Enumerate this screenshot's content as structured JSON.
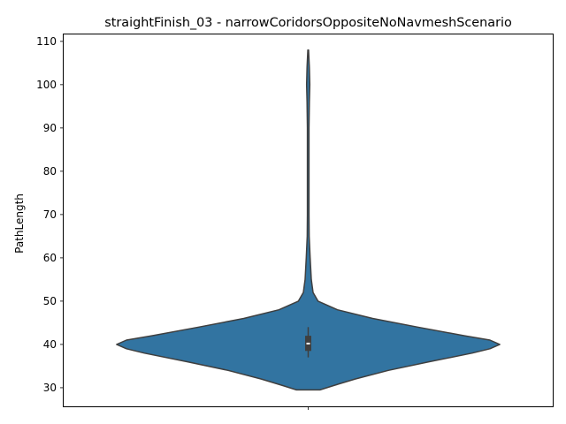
{
  "chart_data": {
    "type": "violin",
    "title": "straightFinish_03 - narrowCoridorsOppositeNoNavmeshScenario",
    "xlabel": "",
    "ylabel": "PathLength",
    "ylim": [
      25.7,
      111.6
    ],
    "yticks": [
      30,
      40,
      50,
      60,
      70,
      80,
      90,
      100,
      110
    ],
    "grid": false,
    "color": "#3274a1",
    "outline_color": "#3f3f3f",
    "density_profile": [
      {
        "y": 29.5,
        "half_width": 0.06
      },
      {
        "y": 30.5,
        "half_width": 0.13
      },
      {
        "y": 32.0,
        "half_width": 0.24
      },
      {
        "y": 34.0,
        "half_width": 0.41
      },
      {
        "y": 36.0,
        "half_width": 0.62
      },
      {
        "y": 38.0,
        "half_width": 0.84
      },
      {
        "y": 39.0,
        "half_width": 0.93
      },
      {
        "y": 40.0,
        "half_width": 0.98
      },
      {
        "y": 41.0,
        "half_width": 0.93
      },
      {
        "y": 42.0,
        "half_width": 0.8
      },
      {
        "y": 44.0,
        "half_width": 0.56
      },
      {
        "y": 46.0,
        "half_width": 0.33
      },
      {
        "y": 48.0,
        "half_width": 0.15
      },
      {
        "y": 50.0,
        "half_width": 0.05
      },
      {
        "y": 52.0,
        "half_width": 0.025
      },
      {
        "y": 55.0,
        "half_width": 0.016
      },
      {
        "y": 60.0,
        "half_width": 0.01
      },
      {
        "y": 65.0,
        "half_width": 0.005
      },
      {
        "y": 70.0,
        "half_width": 0.004
      },
      {
        "y": 80.0,
        "half_width": 0.004
      },
      {
        "y": 90.0,
        "half_width": 0.004
      },
      {
        "y": 96.0,
        "half_width": 0.006
      },
      {
        "y": 100.0,
        "half_width": 0.008
      },
      {
        "y": 104.0,
        "half_width": 0.006
      },
      {
        "y": 108.0,
        "half_width": 0.002
      }
    ],
    "box": {
      "q1": 38.5,
      "median": 40.2,
      "q3": 42.0,
      "whisker_low": 37.0,
      "whisker_high": 44.0
    }
  }
}
